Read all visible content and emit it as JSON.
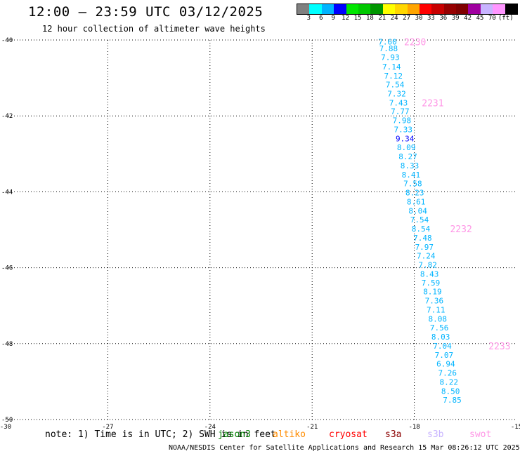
{
  "header": {
    "title": "12:00 – 23:59 UTC 03/12/2025",
    "subtitle": "12 hour collection of altimeter wave heights"
  },
  "colorbar": {
    "colors": [
      "#808080",
      "#00ffff",
      "#00b4ff",
      "#0000ff",
      "#00e600",
      "#00c800",
      "#009600",
      "#ffff00",
      "#ffd700",
      "#ffa500",
      "#ff0000",
      "#c80000",
      "#960000",
      "#800000",
      "#a000a0",
      "#c8b4ff",
      "#ff96ff",
      "#000000"
    ],
    "labels": [
      "3",
      "6",
      "9",
      "12",
      "15",
      "18",
      "21",
      "24",
      "27",
      "30",
      "33",
      "36",
      "39",
      "42",
      "45",
      "70"
    ],
    "unit": "(ft)"
  },
  "note": "note: 1) Time is in UTC; 2) SWH is in feet",
  "legend": [
    {
      "label": "jason3",
      "color": "#008000"
    },
    {
      "label": "altiko",
      "color": "#ff8c00"
    },
    {
      "label": "cryosat",
      "color": "#ff0000"
    },
    {
      "label": "s3a",
      "color": "#8b0000"
    },
    {
      "label": "s3b",
      "color": "#c8b4ff"
    },
    {
      "label": "swot",
      "color": "#ff96e6"
    }
  ],
  "footer": "NOAA/NESDIS Center for Satellite Applications and Research   15 Mar 08:26:12 UTC 2025",
  "chart_data": {
    "type": "scatter",
    "title": "12:00 – 23:59 UTC 03/12/2025",
    "subtitle": "12 hour collection of altimeter wave heights",
    "xlim": [
      -30,
      -15
    ],
    "ylim": [
      -50,
      -40
    ],
    "x_ticks": [
      {
        "value": -30,
        "label": "-30"
      },
      {
        "value": -27,
        "label": "-27"
      },
      {
        "value": -24,
        "label": "-24"
      },
      {
        "value": -21,
        "label": "-21"
      },
      {
        "value": -18,
        "label": "-18"
      },
      {
        "value": -15,
        "label": "-15"
      }
    ],
    "y_ticks": [
      {
        "value": -40,
        "label": "-40"
      },
      {
        "value": -42,
        "label": "-42"
      },
      {
        "value": -44,
        "label": "-44"
      },
      {
        "value": -46,
        "label": "-46"
      },
      {
        "value": -48,
        "label": "-48"
      },
      {
        "value": -50,
        "label": "-50"
      }
    ],
    "grid": true,
    "series": [
      {
        "name": "swot",
        "points": [
          {
            "x": -19.06,
            "y": -40.05,
            "v": "7.60"
          },
          {
            "x": -19.03,
            "y": -40.22,
            "v": "7.88"
          },
          {
            "x": -18.98,
            "y": -40.45,
            "v": "7.93"
          },
          {
            "x": -18.94,
            "y": -40.7,
            "v": "7.14"
          },
          {
            "x": -18.89,
            "y": -40.94,
            "v": "7.12"
          },
          {
            "x": -18.84,
            "y": -41.17,
            "v": "7.54"
          },
          {
            "x": -18.79,
            "y": -41.41,
            "v": "7.32"
          },
          {
            "x": -18.74,
            "y": -41.65,
            "v": "7.43"
          },
          {
            "x": -18.69,
            "y": -41.88,
            "v": "7.77"
          },
          {
            "x": -18.64,
            "y": -42.12,
            "v": "7.98"
          },
          {
            "x": -18.6,
            "y": -42.36,
            "v": "7.33"
          },
          {
            "x": -18.55,
            "y": -42.6,
            "v": "9.34"
          },
          {
            "x": -18.51,
            "y": -42.83,
            "v": "8.09"
          },
          {
            "x": -18.46,
            "y": -43.07,
            "v": "8.27"
          },
          {
            "x": -18.41,
            "y": -43.31,
            "v": "8.33"
          },
          {
            "x": -18.37,
            "y": -43.55,
            "v": "8.41"
          },
          {
            "x": -18.32,
            "y": -43.78,
            "v": "7.58"
          },
          {
            "x": -18.26,
            "y": -44.02,
            "v": "8.23"
          },
          {
            "x": -18.22,
            "y": -44.26,
            "v": "8.61"
          },
          {
            "x": -18.17,
            "y": -44.5,
            "v": "8.04"
          },
          {
            "x": -18.12,
            "y": -44.73,
            "v": "7.54"
          },
          {
            "x": -18.08,
            "y": -44.97,
            "v": "8.54"
          },
          {
            "x": -18.03,
            "y": -45.21,
            "v": "7.48"
          },
          {
            "x": -17.98,
            "y": -45.45,
            "v": "7.97"
          },
          {
            "x": -17.93,
            "y": -45.68,
            "v": "7.24"
          },
          {
            "x": -17.88,
            "y": -45.92,
            "v": "7.82"
          },
          {
            "x": -17.83,
            "y": -46.16,
            "v": "8.43"
          },
          {
            "x": -17.79,
            "y": -46.4,
            "v": "7.59"
          },
          {
            "x": -17.74,
            "y": -46.63,
            "v": "8.19"
          },
          {
            "x": -17.69,
            "y": -46.87,
            "v": "7.36"
          },
          {
            "x": -17.64,
            "y": -47.11,
            "v": "7.11"
          },
          {
            "x": -17.59,
            "y": -47.35,
            "v": "8.08"
          },
          {
            "x": -17.54,
            "y": -47.58,
            "v": "7.56"
          },
          {
            "x": -17.5,
            "y": -47.82,
            "v": "8.03"
          },
          {
            "x": -17.45,
            "y": -48.06,
            "v": "7.04"
          },
          {
            "x": -17.4,
            "y": -48.3,
            "v": "7.07"
          },
          {
            "x": -17.35,
            "y": -48.53,
            "v": "6.94"
          },
          {
            "x": -17.3,
            "y": -48.77,
            "v": "7.26"
          },
          {
            "x": -17.26,
            "y": -49.01,
            "v": "8.22"
          },
          {
            "x": -17.21,
            "y": -49.25,
            "v": "8.50"
          },
          {
            "x": -17.16,
            "y": -49.48,
            "v": "7.85"
          }
        ]
      }
    ],
    "time_labels": [
      {
        "label": "2230",
        "x": -18.3,
        "y": -40.05
      },
      {
        "label": "2231",
        "x": -17.78,
        "y": -41.65
      },
      {
        "label": "2232",
        "x": -16.95,
        "y": -44.97
      },
      {
        "label": "2233",
        "x": -15.82,
        "y": -48.06
      }
    ],
    "value_color_bins": [
      {
        "max": 9,
        "color": "#00b4ff"
      },
      {
        "max": 12,
        "color": "#0000ff"
      }
    ]
  }
}
